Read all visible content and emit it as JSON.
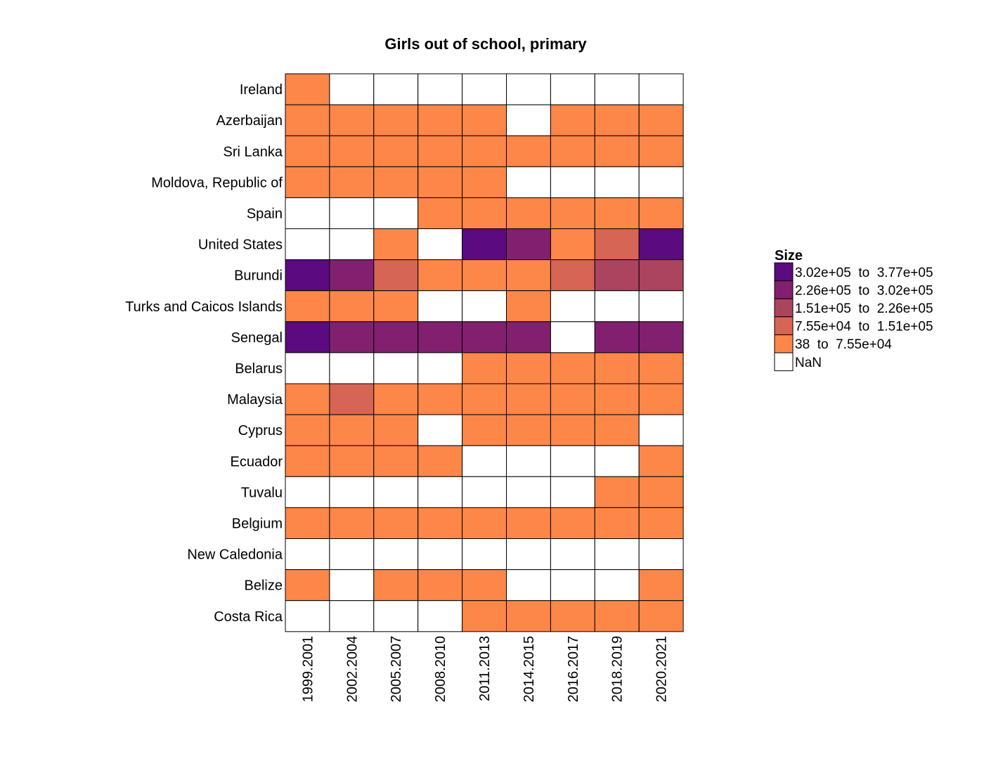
{
  "chart_data": {
    "type": "heatmap",
    "title": "Girls out of school, primary",
    "columns": [
      "1999.2001",
      "2002.2004",
      "2005.2007",
      "2008.2010",
      "2011.2013",
      "2014.2015",
      "2016.2017",
      "2018.2019",
      "2020.2021"
    ],
    "rows": [
      "Ireland",
      "Azerbaijan",
      "Sri Lanka",
      "Moldova, Republic of",
      "Spain",
      "United States",
      "Burundi",
      "Turks and Caicos Islands",
      "Senegal",
      "Belarus",
      "Malaysia",
      "Cyprus",
      "Ecuador",
      "Tuvalu",
      "Belgium",
      "New Caledonia",
      "Belize",
      "Costa Rica"
    ],
    "bins": [
      0,
      0,
      4,
      3,
      2,
      1,
      null
    ],
    "cells": [
      [
        4,
        null,
        null,
        null,
        null,
        null,
        null,
        null,
        null
      ],
      [
        4,
        4,
        4,
        4,
        4,
        null,
        4,
        4,
        4
      ],
      [
        4,
        4,
        4,
        4,
        4,
        4,
        4,
        4,
        4
      ],
      [
        4,
        4,
        4,
        4,
        4,
        null,
        null,
        null,
        null
      ],
      [
        null,
        null,
        null,
        4,
        4,
        4,
        4,
        4,
        4
      ],
      [
        null,
        null,
        4,
        null,
        0,
        1,
        4,
        3,
        0
      ],
      [
        0,
        1,
        3,
        4,
        4,
        4,
        3,
        2,
        2
      ],
      [
        4,
        4,
        4,
        null,
        null,
        4,
        null,
        null,
        null
      ],
      [
        0,
        1,
        1,
        1,
        1,
        1,
        null,
        1,
        1
      ],
      [
        null,
        null,
        null,
        null,
        4,
        4,
        4,
        4,
        4
      ],
      [
        4,
        3,
        4,
        4,
        4,
        4,
        4,
        4,
        4
      ],
      [
        4,
        4,
        4,
        null,
        4,
        4,
        4,
        4,
        null
      ],
      [
        4,
        4,
        4,
        4,
        null,
        null,
        null,
        null,
        4
      ],
      [
        null,
        null,
        null,
        null,
        null,
        null,
        null,
        4,
        4
      ],
      [
        4,
        4,
        4,
        4,
        4,
        4,
        4,
        4,
        4
      ],
      [
        null,
        null,
        null,
        null,
        null,
        null,
        null,
        null,
        null
      ],
      [
        4,
        null,
        4,
        4,
        4,
        null,
        null,
        null,
        4
      ],
      [
        null,
        null,
        null,
        null,
        4,
        4,
        4,
        4,
        4
      ]
    ],
    "legend": {
      "title": "Size",
      "placement": "right",
      "entries": [
        {
          "label": "3.02e+05  to  3.77e+05",
          "color": "#5c0a7f"
        },
        {
          "label": "2.26e+05  to  3.02e+05",
          "color": "#82206f"
        },
        {
          "label": "1.51e+05  to  2.26e+05",
          "color": "#ab445f"
        },
        {
          "label": "7.55e+04  to  1.51e+05",
          "color": "#d66555"
        },
        {
          "label": "38  to  7.55e+04",
          "color": "#fc8749"
        },
        {
          "label": "NaN",
          "color": "#ffffff"
        }
      ]
    }
  }
}
